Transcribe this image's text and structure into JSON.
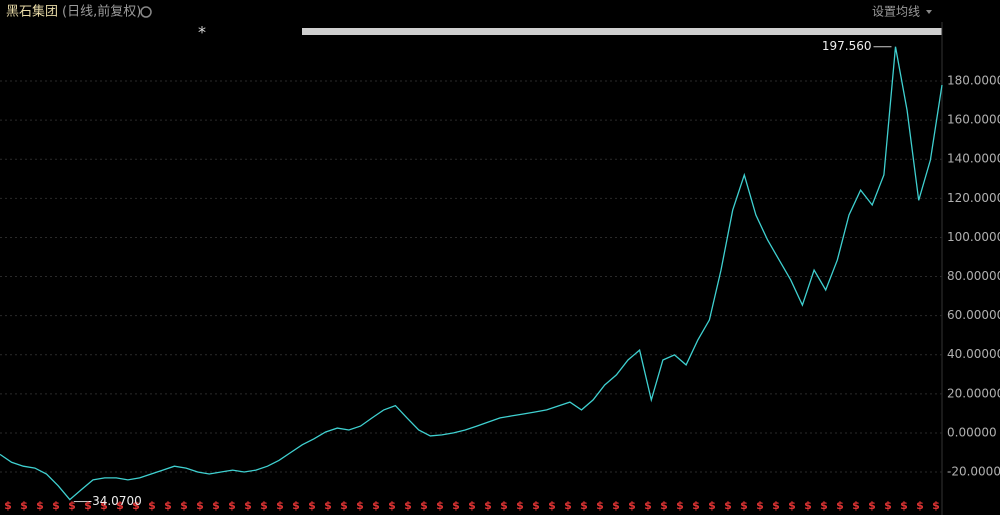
{
  "chart_data": {
    "type": "line",
    "title": "黑石集团",
    "subtitle": "(日线,前复权)",
    "settings_label": "设置均线",
    "event_marker": "*",
    "dividend_marker": "$",
    "color": "#3fd0d0",
    "grid": true,
    "values": [
      -11,
      -15,
      -17,
      -18,
      -21,
      -27,
      -34.07,
      -29,
      -24,
      -23,
      -23,
      -24,
      -23,
      -21,
      -19,
      -17,
      -18,
      -20,
      -21,
      -20,
      -19,
      -20,
      -19,
      -17,
      -14,
      -10,
      -6,
      -3,
      0.5,
      2.5,
      1.5,
      3.5,
      7.7,
      11.8,
      14,
      7.7,
      1.5,
      -1.5,
      -1,
      0,
      1.5,
      3.5,
      5.6,
      7.7,
      8.7,
      9.7,
      10.7,
      11.8,
      13.8,
      15.8,
      11.8,
      16.9,
      24.5,
      29.7,
      37.3,
      42.4,
      16.9,
      37.3,
      39.9,
      34.8,
      47.5,
      57.8,
      83.3,
      114,
      132,
      111.5,
      98.7,
      88.4,
      78.2,
      65.4,
      83.3,
      73.1,
      88.4,
      111.5,
      124.2,
      116.6,
      132,
      197.56,
      165,
      119,
      139.6,
      178
    ],
    "annotations": [
      "197.560",
      "-34.0700"
    ],
    "ylim": [
      -34.3,
      210.2
    ],
    "yticks": [
      {
        "value": -20,
        "label": "-20.00000"
      },
      {
        "value": 0,
        "label": "0.00000"
      },
      {
        "value": 20,
        "label": "20.00000"
      },
      {
        "value": 40,
        "label": "40.00000"
      },
      {
        "value": 60,
        "label": "60.00000"
      },
      {
        "value": 80,
        "label": "80.00000"
      },
      {
        "value": 100,
        "label": "100.00000"
      },
      {
        "value": 120,
        "label": "120.00000"
      },
      {
        "value": 140,
        "label": "140.00000"
      },
      {
        "value": 160,
        "label": "160.00000"
      },
      {
        "value": 180,
        "label": "180.00000"
      }
    ]
  }
}
